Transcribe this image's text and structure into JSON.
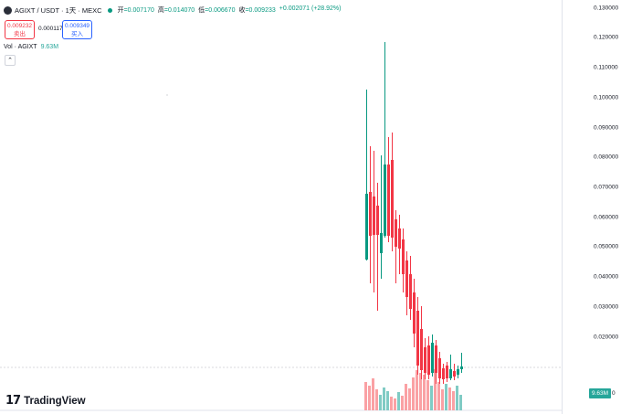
{
  "header": {
    "symbol": "AGIXT / USDT · 1天 · MEXC",
    "open_label": "开",
    "open_value": "=0.007170",
    "high_label": "高",
    "high_value": "=0.014070",
    "low_label": "低",
    "low_value": "=0.006670",
    "close_label": "收",
    "close_value": "=0.009233",
    "change_value": "+0.002071 (+28.92%)"
  },
  "trade": {
    "sell_price": "0.009232",
    "sell_label": "卖出",
    "spread": "0.000117",
    "buy_price": "0.009349",
    "buy_label": "买入"
  },
  "volume": {
    "label": "Vol · AGIXT",
    "value": "9.63M",
    "badge": "9.63M",
    "badge_suffix": "0"
  },
  "yaxis": {
    "ticks": [
      "0.130000",
      "0.120000",
      "0.110000",
      "0.100000",
      "0.090000",
      "0.080000",
      "0.070000",
      "0.060000",
      "0.050000",
      "0.040000",
      "0.030000",
      "0.020000"
    ]
  },
  "branding": {
    "logo_text": "TradingView",
    "logo_mark": "17"
  },
  "colors": {
    "up": "#089981",
    "down": "#f23645",
    "vol_up": "#80cbc4",
    "vol_down": "#faa1a4"
  }
}
